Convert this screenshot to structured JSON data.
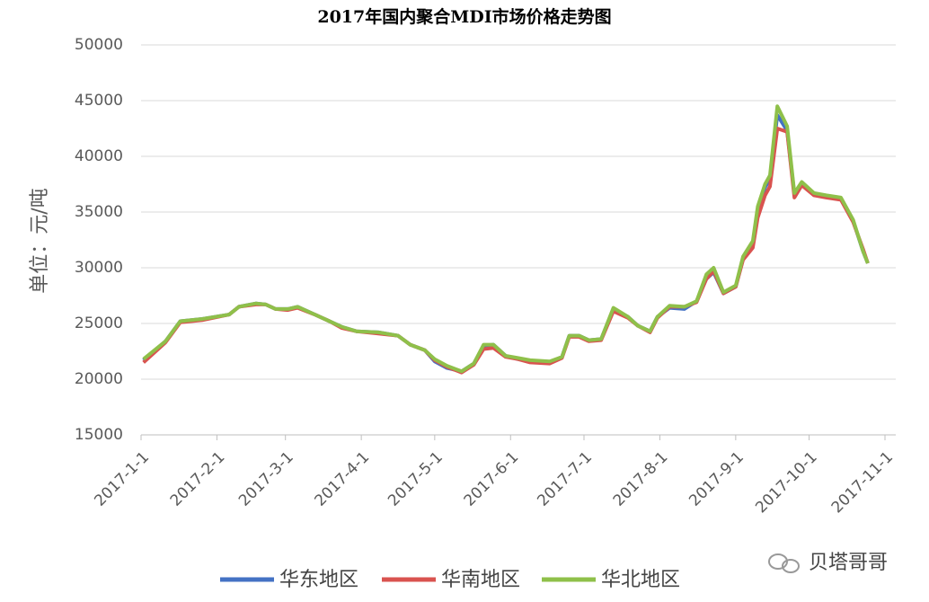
{
  "chart_data": {
    "type": "line",
    "title": "2017年国内聚合MDI市场价格走势图",
    "y_label": "单位：元/吨",
    "watermark": "贝塔哥哥",
    "x": [
      "2017-1-2",
      "2017-1-11",
      "2017-1-17",
      "2017-1-26",
      "2017-2-6",
      "2017-2-10",
      "2017-2-17",
      "2017-2-21",
      "2017-2-25",
      "2017-3-2",
      "2017-3-6",
      "2017-3-13",
      "2017-3-19",
      "2017-3-24",
      "2017-3-30",
      "2017-4-8",
      "2017-4-16",
      "2017-4-21",
      "2017-4-27",
      "2017-5-1",
      "2017-5-6",
      "2017-5-12",
      "2017-5-17",
      "2017-5-21",
      "2017-5-25",
      "2017-5-30",
      "2017-6-4",
      "2017-6-9",
      "2017-6-17",
      "2017-6-22",
      "2017-6-25",
      "2017-6-29",
      "2017-7-3",
      "2017-7-8",
      "2017-7-13",
      "2017-7-19",
      "2017-7-23",
      "2017-7-28",
      "2017-7-31",
      "2017-8-5",
      "2017-8-11",
      "2017-8-16",
      "2017-8-20",
      "2017-8-23",
      "2017-8-27",
      "2017-9-1",
      "2017-9-4",
      "2017-9-8",
      "2017-9-10",
      "2017-9-13",
      "2017-9-15",
      "2017-9-18",
      "2017-9-22",
      "2017-9-25",
      "2017-9-28",
      "2017-10-3",
      "2017-10-8",
      "2017-10-14",
      "2017-10-19",
      "2017-10-23",
      "2017-10-25"
    ],
    "series": [
      {
        "name": "华东地区",
        "color": "#4472c4",
        "values": [
          21700,
          23400,
          25200,
          25400,
          25800,
          26500,
          26800,
          26700,
          26300,
          26300,
          26500,
          25800,
          25200,
          24700,
          24300,
          24200,
          23900,
          23100,
          22600,
          21600,
          21000,
          20700,
          21400,
          23000,
          23100,
          22100,
          21800,
          21600,
          21500,
          22000,
          23900,
          23900,
          23500,
          23600,
          26300,
          25600,
          24800,
          24300,
          25600,
          26400,
          26300,
          27000,
          29000,
          29600,
          27700,
          28300,
          30800,
          32000,
          35200,
          37200,
          38000,
          43700,
          42300,
          36600,
          37600,
          36600,
          36400,
          36200,
          34200,
          31500,
          30400
        ]
      },
      {
        "name": "华南地区",
        "color": "#d9534f",
        "values": [
          21500,
          23300,
          25100,
          25300,
          25800,
          26500,
          26700,
          26700,
          26300,
          26200,
          26400,
          25800,
          25200,
          24600,
          24300,
          24100,
          23900,
          23100,
          22600,
          21700,
          21100,
          20600,
          21300,
          22700,
          22800,
          22000,
          21800,
          21500,
          21400,
          21900,
          23800,
          23800,
          23400,
          23500,
          26100,
          25500,
          24800,
          24200,
          25500,
          26500,
          26500,
          26900,
          29000,
          29700,
          27700,
          28300,
          30700,
          31800,
          34500,
          36500,
          37300,
          42500,
          42200,
          36300,
          37400,
          36500,
          36300,
          36100,
          34100,
          31700,
          30400
        ]
      },
      {
        "name": "华北地区",
        "color": "#8fc04a",
        "values": [
          21800,
          23400,
          25200,
          25400,
          25800,
          26500,
          26800,
          26700,
          26300,
          26300,
          26500,
          25800,
          25200,
          24700,
          24300,
          24200,
          23900,
          23100,
          22600,
          21800,
          21200,
          20700,
          21400,
          23100,
          23100,
          22100,
          21900,
          21700,
          21600,
          22000,
          23900,
          23900,
          23500,
          23600,
          26400,
          25600,
          24800,
          24300,
          25600,
          26600,
          26500,
          27000,
          29400,
          30000,
          27800,
          28400,
          31000,
          32400,
          35500,
          37500,
          38300,
          44500,
          42700,
          36700,
          37700,
          36700,
          36500,
          36300,
          34300,
          31500,
          30400
        ]
      }
    ],
    "xlim": [
      "2017-1-1",
      "2017-11-1"
    ],
    "xticks": [
      "2017-1-1",
      "2017-2-1",
      "2017-3-1",
      "2017-4-1",
      "2017-5-1",
      "2017-6-1",
      "2017-7-1",
      "2017-8-1",
      "2017-9-1",
      "2017-10-1",
      "2017-11-1"
    ],
    "ylim": [
      15000,
      50000
    ],
    "yticks": [
      15000,
      20000,
      25000,
      30000,
      35000,
      40000,
      45000,
      50000
    ],
    "grid": true,
    "legend": "bottom"
  }
}
